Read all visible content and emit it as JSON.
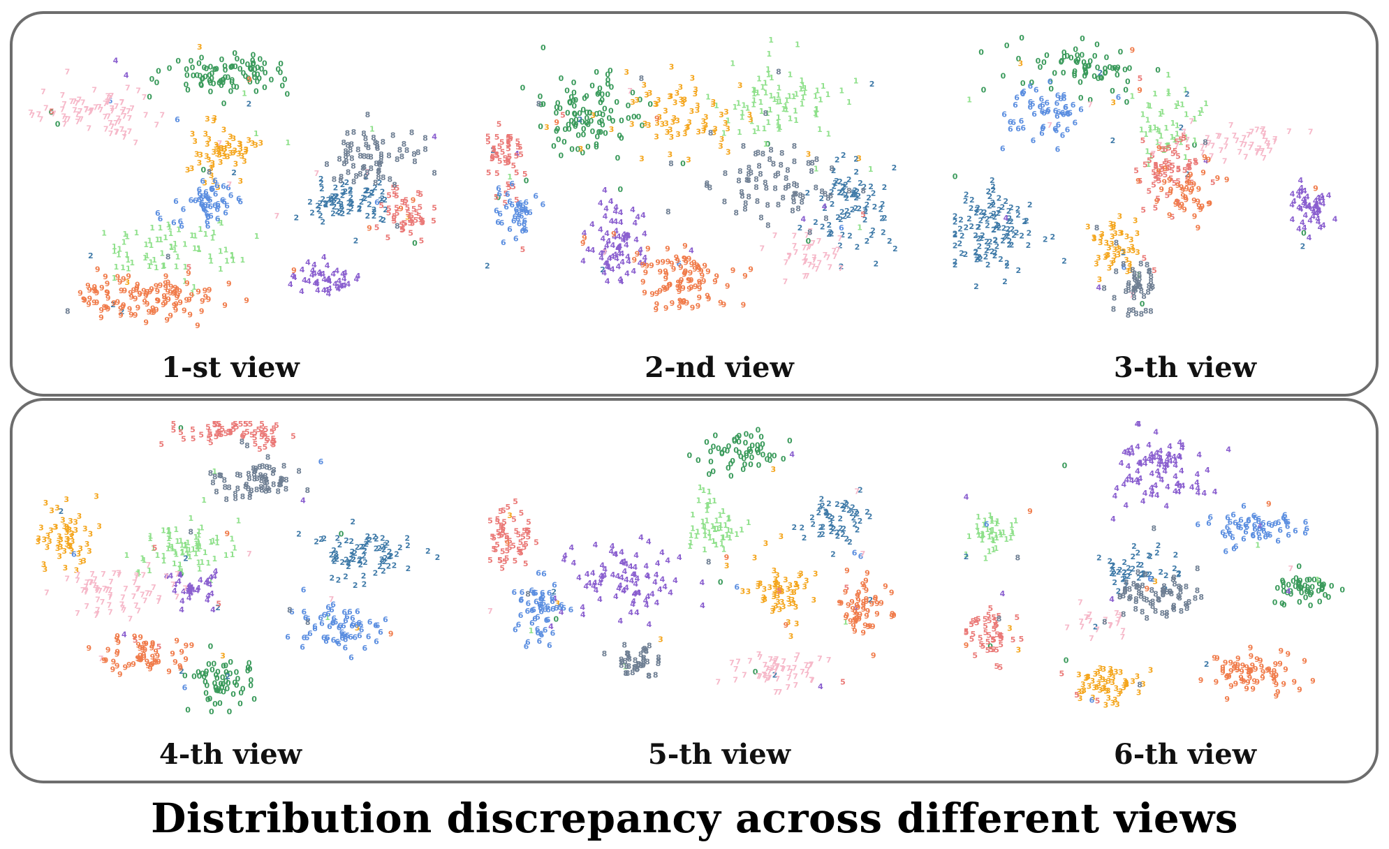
{
  "title": "Distribution discrepancy across different views",
  "chart_data": {
    "type": "scatter",
    "title": "Distribution discrepancy across different views",
    "marker": "digit glyph (class label)",
    "legend": "none",
    "grid": false,
    "axes": "hidden",
    "colors": {
      "0": "#3a9a5b",
      "1": "#8ee08a",
      "2": "#3f7aa8",
      "3": "#f4a51c",
      "4": "#8a5fcf",
      "5": "#ea7876",
      "6": "#5b8ee0",
      "7": "#f6b8c9",
      "8": "#6f7f93",
      "9": "#f07b4a"
    },
    "views": [
      {
        "label": "1-st view",
        "clusters": [
          {
            "digit": "0",
            "cx": 0.48,
            "cy": 0.14,
            "sx": 0.1,
            "sy": 0.05,
            "n": 90
          },
          {
            "digit": "1",
            "cx": 0.35,
            "cy": 0.72,
            "sx": 0.12,
            "sy": 0.06,
            "n": 70
          },
          {
            "digit": "2",
            "cx": 0.78,
            "cy": 0.56,
            "sx": 0.07,
            "sy": 0.06,
            "n": 75
          },
          {
            "digit": "3",
            "cx": 0.48,
            "cy": 0.4,
            "sx": 0.06,
            "sy": 0.06,
            "n": 60
          },
          {
            "digit": "4",
            "cx": 0.72,
            "cy": 0.82,
            "sx": 0.06,
            "sy": 0.04,
            "n": 45
          },
          {
            "digit": "5",
            "cx": 0.92,
            "cy": 0.6,
            "sx": 0.04,
            "sy": 0.06,
            "n": 45
          },
          {
            "digit": "6",
            "cx": 0.44,
            "cy": 0.56,
            "sx": 0.06,
            "sy": 0.05,
            "n": 55
          },
          {
            "digit": "7",
            "cx": 0.18,
            "cy": 0.27,
            "sx": 0.09,
            "sy": 0.05,
            "n": 75
          },
          {
            "digit": "8",
            "cx": 0.84,
            "cy": 0.42,
            "sx": 0.08,
            "sy": 0.06,
            "n": 70
          },
          {
            "digit": "9",
            "cx": 0.3,
            "cy": 0.88,
            "sx": 0.11,
            "sy": 0.05,
            "n": 110
          }
        ]
      },
      {
        "label": "2-nd view",
        "clusters": [
          {
            "digit": "0",
            "cx": 0.26,
            "cy": 0.26,
            "sx": 0.07,
            "sy": 0.09,
            "n": 100
          },
          {
            "digit": "1",
            "cx": 0.7,
            "cy": 0.2,
            "sx": 0.1,
            "sy": 0.09,
            "n": 80
          },
          {
            "digit": "2",
            "cx": 0.88,
            "cy": 0.55,
            "sx": 0.06,
            "sy": 0.1,
            "n": 75
          },
          {
            "digit": "3",
            "cx": 0.48,
            "cy": 0.26,
            "sx": 0.1,
            "sy": 0.09,
            "n": 70
          },
          {
            "digit": "4",
            "cx": 0.32,
            "cy": 0.7,
            "sx": 0.05,
            "sy": 0.1,
            "n": 75
          },
          {
            "digit": "5",
            "cx": 0.06,
            "cy": 0.42,
            "sx": 0.03,
            "sy": 0.07,
            "n": 45
          },
          {
            "digit": "6",
            "cx": 0.08,
            "cy": 0.6,
            "sx": 0.03,
            "sy": 0.07,
            "n": 40
          },
          {
            "digit": "7",
            "cx": 0.78,
            "cy": 0.74,
            "sx": 0.07,
            "sy": 0.06,
            "n": 35
          },
          {
            "digit": "8",
            "cx": 0.7,
            "cy": 0.5,
            "sx": 0.12,
            "sy": 0.08,
            "n": 75
          },
          {
            "digit": "9",
            "cx": 0.48,
            "cy": 0.82,
            "sx": 0.08,
            "sy": 0.07,
            "n": 90
          }
        ]
      },
      {
        "label": "3-th view",
        "clusters": [
          {
            "digit": "0",
            "cx": 0.32,
            "cy": 0.14,
            "sx": 0.14,
            "sy": 0.06,
            "n": 70
          },
          {
            "digit": "1",
            "cx": 0.56,
            "cy": 0.34,
            "sx": 0.07,
            "sy": 0.08,
            "n": 45
          },
          {
            "digit": "2",
            "cx": 0.1,
            "cy": 0.7,
            "sx": 0.08,
            "sy": 0.1,
            "n": 110
          },
          {
            "digit": "3",
            "cx": 0.42,
            "cy": 0.76,
            "sx": 0.04,
            "sy": 0.06,
            "n": 45
          },
          {
            "digit": "4",
            "cx": 0.92,
            "cy": 0.62,
            "sx": 0.04,
            "sy": 0.06,
            "n": 50
          },
          {
            "digit": "5",
            "cx": 0.56,
            "cy": 0.5,
            "sx": 0.05,
            "sy": 0.08,
            "n": 60
          },
          {
            "digit": "6",
            "cx": 0.24,
            "cy": 0.3,
            "sx": 0.06,
            "sy": 0.08,
            "n": 55
          },
          {
            "digit": "7",
            "cx": 0.72,
            "cy": 0.4,
            "sx": 0.1,
            "sy": 0.04,
            "n": 50
          },
          {
            "digit": "8",
            "cx": 0.48,
            "cy": 0.9,
            "sx": 0.04,
            "sy": 0.05,
            "n": 45
          },
          {
            "digit": "9",
            "cx": 0.6,
            "cy": 0.58,
            "sx": 0.05,
            "sy": 0.07,
            "n": 45
          }
        ]
      },
      {
        "label": "4-th view",
        "clusters": [
          {
            "digit": "0",
            "cx": 0.46,
            "cy": 0.9,
            "sx": 0.05,
            "sy": 0.06,
            "n": 60
          },
          {
            "digit": "1",
            "cx": 0.38,
            "cy": 0.42,
            "sx": 0.08,
            "sy": 0.06,
            "n": 70
          },
          {
            "digit": "2",
            "cx": 0.8,
            "cy": 0.46,
            "sx": 0.08,
            "sy": 0.07,
            "n": 75
          },
          {
            "digit": "3",
            "cx": 0.08,
            "cy": 0.4,
            "sx": 0.04,
            "sy": 0.07,
            "n": 55
          },
          {
            "digit": "4",
            "cx": 0.38,
            "cy": 0.56,
            "sx": 0.04,
            "sy": 0.04,
            "n": 35
          },
          {
            "digit": "5",
            "cx": 0.5,
            "cy": 0.04,
            "sx": 0.1,
            "sy": 0.04,
            "n": 65
          },
          {
            "digit": "6",
            "cx": 0.74,
            "cy": 0.7,
            "sx": 0.07,
            "sy": 0.06,
            "n": 65
          },
          {
            "digit": "7",
            "cx": 0.2,
            "cy": 0.58,
            "sx": 0.09,
            "sy": 0.06,
            "n": 65
          },
          {
            "digit": "8",
            "cx": 0.54,
            "cy": 0.2,
            "sx": 0.07,
            "sy": 0.05,
            "n": 65
          },
          {
            "digit": "9",
            "cx": 0.28,
            "cy": 0.8,
            "sx": 0.07,
            "sy": 0.04,
            "n": 55
          }
        ]
      },
      {
        "label": "5-th view",
        "clusters": [
          {
            "digit": "0",
            "cx": 0.62,
            "cy": 0.1,
            "sx": 0.07,
            "sy": 0.05,
            "n": 55
          },
          {
            "digit": "1",
            "cx": 0.55,
            "cy": 0.36,
            "sx": 0.05,
            "sy": 0.07,
            "n": 50
          },
          {
            "digit": "2",
            "cx": 0.84,
            "cy": 0.34,
            "sx": 0.05,
            "sy": 0.06,
            "n": 50
          },
          {
            "digit": "3",
            "cx": 0.7,
            "cy": 0.58,
            "sx": 0.05,
            "sy": 0.07,
            "n": 60
          },
          {
            "digit": "4",
            "cx": 0.32,
            "cy": 0.54,
            "sx": 0.09,
            "sy": 0.09,
            "n": 85
          },
          {
            "digit": "5",
            "cx": 0.06,
            "cy": 0.4,
            "sx": 0.04,
            "sy": 0.07,
            "n": 55
          },
          {
            "digit": "6",
            "cx": 0.13,
            "cy": 0.64,
            "sx": 0.04,
            "sy": 0.07,
            "n": 55
          },
          {
            "digit": "7",
            "cx": 0.7,
            "cy": 0.86,
            "sx": 0.07,
            "sy": 0.04,
            "n": 55
          },
          {
            "digit": "8",
            "cx": 0.36,
            "cy": 0.82,
            "sx": 0.04,
            "sy": 0.05,
            "n": 40
          },
          {
            "digit": "9",
            "cx": 0.9,
            "cy": 0.64,
            "sx": 0.04,
            "sy": 0.06,
            "n": 55
          }
        ]
      },
      {
        "label": "6-th view",
        "clusters": [
          {
            "digit": "0",
            "cx": 0.88,
            "cy": 0.58,
            "sx": 0.05,
            "sy": 0.04,
            "n": 50
          },
          {
            "digit": "1",
            "cx": 0.08,
            "cy": 0.38,
            "sx": 0.05,
            "sy": 0.05,
            "n": 40
          },
          {
            "digit": "2",
            "cx": 0.44,
            "cy": 0.5,
            "sx": 0.06,
            "sy": 0.05,
            "n": 45
          },
          {
            "digit": "3",
            "cx": 0.38,
            "cy": 0.9,
            "sx": 0.06,
            "sy": 0.04,
            "n": 55
          },
          {
            "digit": "4",
            "cx": 0.5,
            "cy": 0.16,
            "sx": 0.09,
            "sy": 0.09,
            "n": 90
          },
          {
            "digit": "5",
            "cx": 0.08,
            "cy": 0.72,
            "sx": 0.04,
            "sy": 0.06,
            "n": 45
          },
          {
            "digit": "6",
            "cx": 0.74,
            "cy": 0.36,
            "sx": 0.08,
            "sy": 0.04,
            "n": 60
          },
          {
            "digit": "7",
            "cx": 0.36,
            "cy": 0.7,
            "sx": 0.05,
            "sy": 0.04,
            "n": 20
          },
          {
            "digit": "8",
            "cx": 0.5,
            "cy": 0.6,
            "sx": 0.07,
            "sy": 0.06,
            "n": 70
          },
          {
            "digit": "9",
            "cx": 0.74,
            "cy": 0.86,
            "sx": 0.07,
            "sy": 0.05,
            "n": 70
          }
        ]
      }
    ]
  }
}
